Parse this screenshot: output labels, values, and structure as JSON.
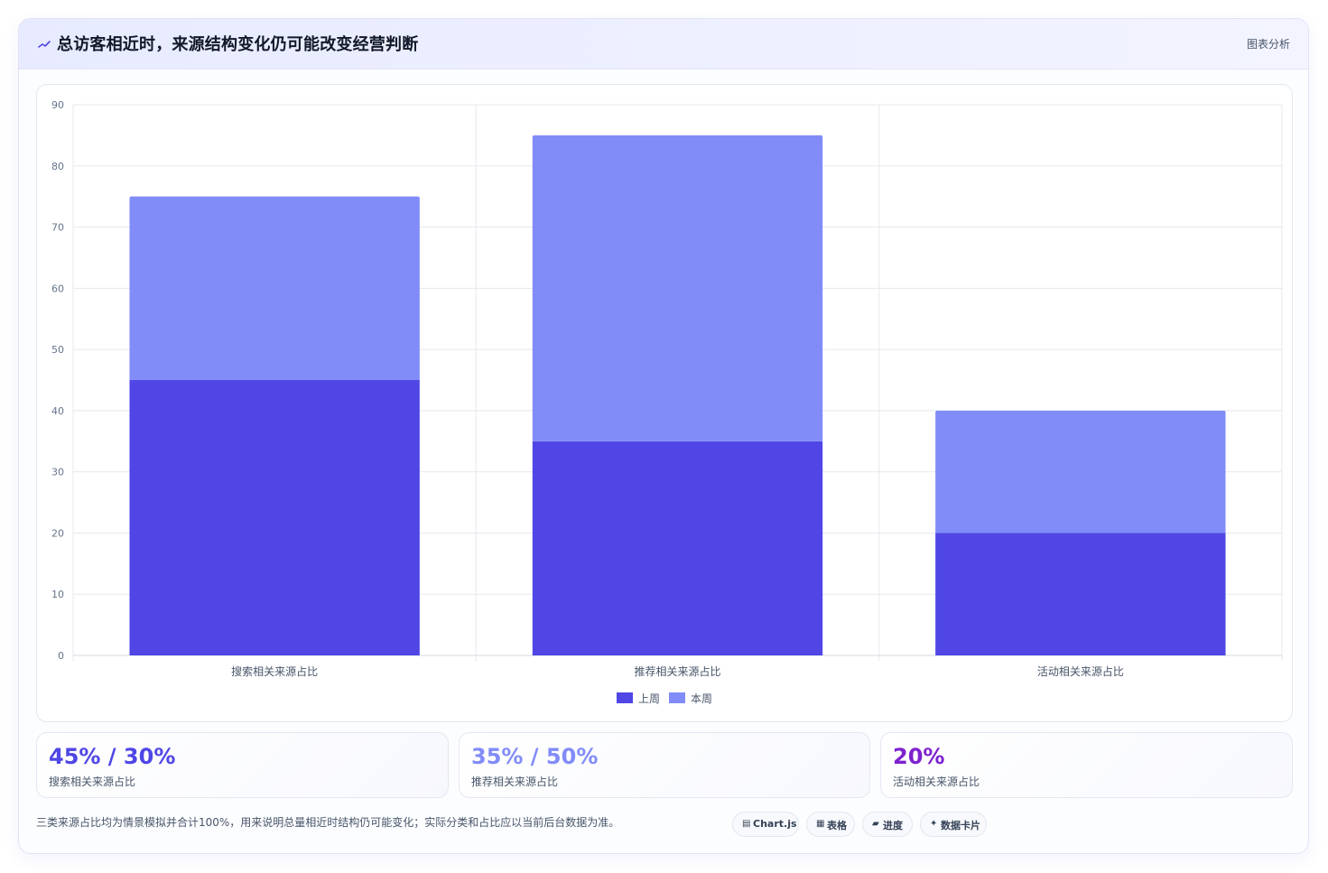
{
  "header": {
    "title": "总访客相近时，来源结构变化仍可能改变经营判断",
    "tag": "图表分析",
    "icon": "chart-icon"
  },
  "chart_data": {
    "type": "bar",
    "stacked": true,
    "categories": [
      "搜索相关来源占比",
      "推荐相关来源占比",
      "活动相关来源占比"
    ],
    "series": [
      {
        "name": "上周",
        "values": [
          45,
          35,
          20
        ],
        "color": "#4f46e5"
      },
      {
        "name": "本周",
        "values": [
          30,
          50,
          20
        ],
        "color": "#818cf8"
      }
    ],
    "ylim": [
      0,
      90
    ],
    "yticks": [
      "0",
      "10",
      "20",
      "30",
      "40",
      "50",
      "60",
      "70",
      "80",
      "90"
    ],
    "grid": true,
    "legend_position": "bottom"
  },
  "kpis": [
    {
      "value": "45% / 30%",
      "label": "搜索相关来源占比",
      "color": "#4f46e5"
    },
    {
      "value": "35% / 50%",
      "label": "推荐相关来源占比",
      "color": "#818cf8"
    },
    {
      "value": "20%",
      "label": "活动相关来源占比",
      "color": "#7e22ce"
    }
  ],
  "note": "三类来源占比均为情景模拟并合计100%，用来说明总量相近时结构仍可能变化；实际分类和占比应以当前后台数据为准。",
  "chips": [
    {
      "icon": "▤",
      "icon_name": "chart-js-icon",
      "label": "Chart.js"
    },
    {
      "icon": "▦",
      "icon_name": "table-icon",
      "label": "表格"
    },
    {
      "icon": "▰",
      "icon_name": "progress-icon",
      "label": "进度"
    },
    {
      "icon": "✦",
      "icon_name": "data-card-icon",
      "label": "数据卡片"
    }
  ]
}
